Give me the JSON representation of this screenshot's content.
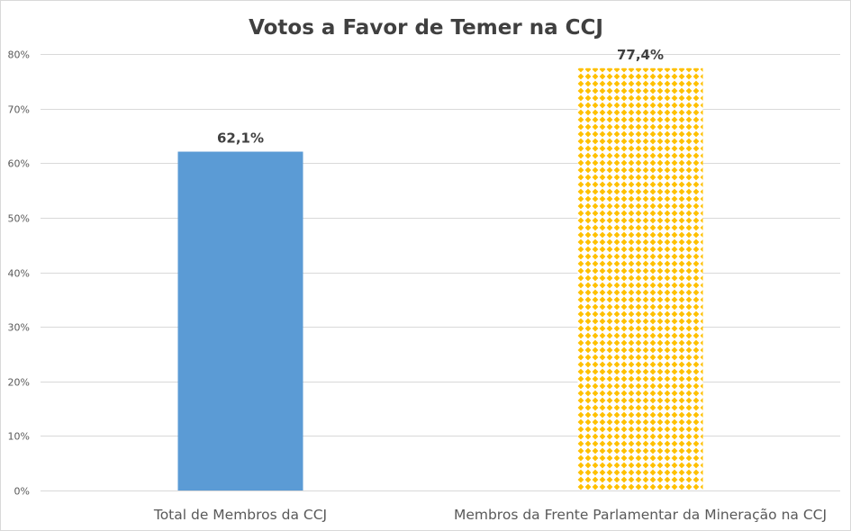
{
  "chart_data": {
    "type": "bar",
    "title": "Votos a Favor de Temer na CCJ",
    "xlabel": "",
    "ylabel": "",
    "categories": [
      "Total de Membros da CCJ",
      "Membros da Frente Parlamentar da Mineração na CCJ"
    ],
    "values": [
      62.1,
      77.4
    ],
    "data_labels": [
      "62,1%",
      "77,4%"
    ],
    "ylim": [
      0,
      80
    ],
    "yticks": [
      0,
      10,
      20,
      30,
      40,
      50,
      60,
      70,
      80
    ],
    "ytick_labels": [
      "0%",
      "10%",
      "20%",
      "30%",
      "40%",
      "50%",
      "60%",
      "70%",
      "80%"
    ],
    "grid": true,
    "legend": "none",
    "bar_styles": [
      {
        "fill": "solid",
        "color": "#5b9bd5"
      },
      {
        "fill": "diamond-pattern",
        "color": "#ffc000"
      }
    ]
  }
}
